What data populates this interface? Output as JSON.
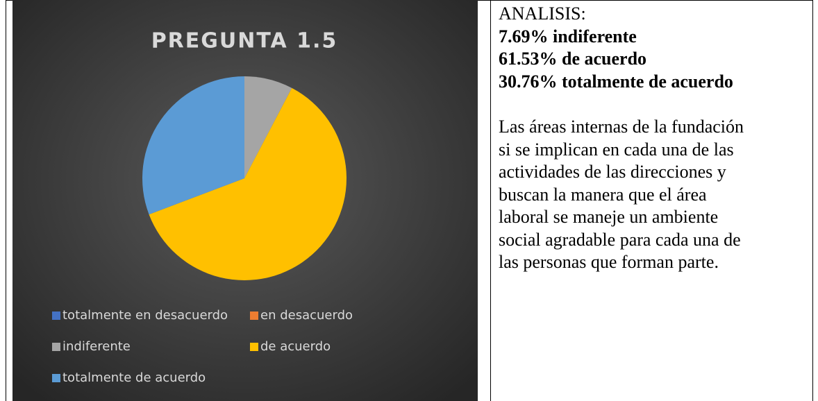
{
  "chart_data": {
    "type": "pie",
    "title": "PREGUNTA 1.5",
    "categories": [
      "totalmente en desacuerdo",
      "en desacuerdo",
      "indiferente",
      "de acuerdo",
      "totalmente de acuerdo"
    ],
    "values": [
      0,
      0,
      7.69,
      61.53,
      30.76
    ],
    "colors": [
      "#4472c4",
      "#ed7d31",
      "#a5a5a5",
      "#ffc000",
      "#5b9bd5"
    ],
    "legend": "bottom"
  },
  "analysis": {
    "heading": "ANALISIS:",
    "results": [
      "7.69% indiferente",
      "61.53% de acuerdo",
      "30.76% totalmente de acuerdo"
    ],
    "paragraph": [
      "Las áreas internas de la fundación",
      "si se implican en cada una de las",
      "actividades de las direcciones y",
      "buscan la manera que el área",
      "laboral se maneje un ambiente",
      "social agradable para cada una de",
      "las personas que forman parte."
    ]
  }
}
